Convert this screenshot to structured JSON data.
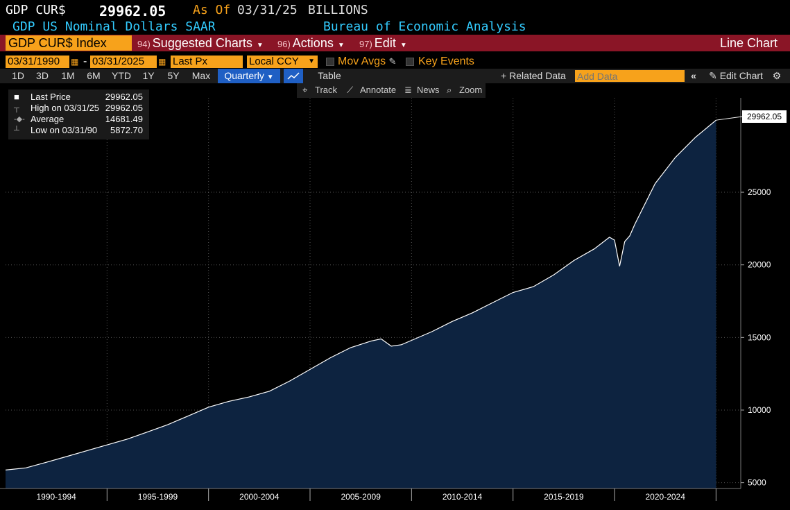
{
  "header": {
    "ticker": "GDP CUR$",
    "price": "29962.05",
    "as_of_label": "As Of",
    "as_of_date": "03/31/25",
    "units": "BILLIONS",
    "description": "GDP US Nominal Dollars SAAR",
    "source": "Bureau of Economic Analysis"
  },
  "toolbar": {
    "security": "GDP CUR$ Index",
    "menus": [
      {
        "fn": "94)",
        "label": "Suggested Charts"
      },
      {
        "fn": "96)",
        "label": "Actions"
      },
      {
        "fn": "97)",
        "label": "Edit"
      }
    ],
    "chart_type": "Line Chart"
  },
  "options": {
    "start_date": "03/31/1990",
    "end_date": "03/31/2025",
    "separator": "-",
    "field": "Last Px",
    "currency": "Local CCY",
    "mov_avgs": "Mov Avgs",
    "key_events": "Key Events"
  },
  "ranges": [
    "1D",
    "3D",
    "1M",
    "6M",
    "YTD",
    "1Y",
    "5Y",
    "Max"
  ],
  "periodicity": "Quarterly",
  "table_label": "Table",
  "related_data": "Related Data",
  "add_data_placeholder": "Add Data",
  "edit_chart": "Edit Chart",
  "tools": [
    "Track",
    "Annotate",
    "News",
    "Zoom"
  ],
  "legend": [
    {
      "label": "Last Price",
      "value": "29962.05"
    },
    {
      "label": "High on 03/31/25",
      "value": "29962.05"
    },
    {
      "label": "Average",
      "value": "14681.49"
    },
    {
      "label": "Low on 03/31/90",
      "value": "5872.70"
    }
  ],
  "colors": {
    "accent": "#f7a21b",
    "bar": "#8a1526",
    "area": "#0d2340",
    "cyan": "#33ccff"
  },
  "chart_data": {
    "type": "area",
    "last_value_label": "29962.05",
    "ylim": [
      4600,
      31500
    ],
    "yticks": [
      5000,
      10000,
      15000,
      20000,
      25000
    ],
    "ytick_labels": [
      "5000",
      "10000",
      "15000",
      "20000",
      "25000"
    ],
    "xlim": [
      1990.0,
      2025.5
    ],
    "x_periods": [
      "1990-1994",
      "1995-1999",
      "2000-2004",
      "2005-2009",
      "2010-2014",
      "2015-2019",
      "2020-2024"
    ],
    "x": [
      1990.0,
      1991.0,
      1992.0,
      1993.0,
      1994.0,
      1995.0,
      1996.0,
      1997.0,
      1998.0,
      1999.0,
      2000.0,
      2001.0,
      2002.0,
      2003.0,
      2004.0,
      2005.0,
      2006.0,
      2007.0,
      2008.0,
      2008.5,
      2009.0,
      2009.5,
      2010.0,
      2011.0,
      2012.0,
      2013.0,
      2014.0,
      2015.0,
      2016.0,
      2017.0,
      2018.0,
      2019.0,
      2019.75,
      2020.0,
      2020.25,
      2020.5,
      2020.75,
      2021.0,
      2022.0,
      2023.0,
      2024.0,
      2025.0
    ],
    "values": [
      5872.7,
      6020,
      6400,
      6800,
      7200,
      7600,
      8000,
      8500,
      9000,
      9600,
      10200,
      10600,
      10900,
      11300,
      12000,
      12800,
      13600,
      14300,
      14750,
      14900,
      14400,
      14500,
      14800,
      15400,
      16100,
      16700,
      17400,
      18100,
      18500,
      19300,
      20300,
      21100,
      21900,
      21700,
      19900,
      21600,
      22000,
      22800,
      25600,
      27400,
      28800,
      29962.05
    ]
  }
}
